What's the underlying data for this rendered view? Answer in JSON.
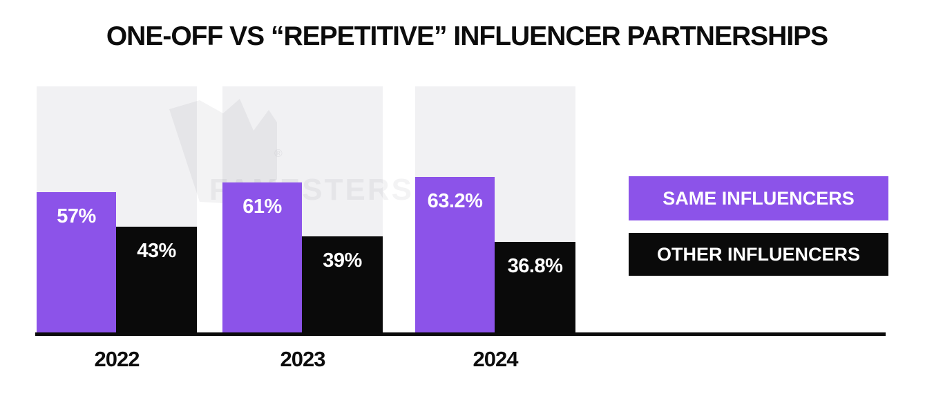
{
  "chart_data": {
    "type": "bar",
    "title": "ONE-OFF VS “REPETITIVE” INFLUENCER PARTNERSHIPS",
    "categories": [
      "2022",
      "2023",
      "2024"
    ],
    "series": [
      {
        "name": "SAME INFLUENCERS",
        "color": "#8C53E9",
        "values": [
          57,
          61,
          63.2
        ],
        "labels": [
          "57%",
          "61%",
          "63.2%"
        ]
      },
      {
        "name": "OTHER INFLUENCERS",
        "color": "#0A0A0A",
        "values": [
          43,
          39,
          36.8
        ],
        "labels": [
          "43%",
          "39%",
          "36.8%"
        ]
      }
    ],
    "ylim": [
      0,
      100
    ],
    "grid": false,
    "legend_position": "right",
    "track_color": "#F1F1F3",
    "value_label_color": "#FFFFFF",
    "baseline_color": "#0B0B0B"
  },
  "legend": {
    "items": [
      {
        "label": "SAME INFLUENCERS",
        "color": "#8C53E9",
        "text_color": "#FFFFFF"
      },
      {
        "label": "OTHER INFLUENCERS",
        "color": "#0A0A0A",
        "text_color": "#FFFFFF"
      }
    ]
  },
  "watermark": {
    "brand_text": "FAMESTERS",
    "registered_mark": "®"
  }
}
